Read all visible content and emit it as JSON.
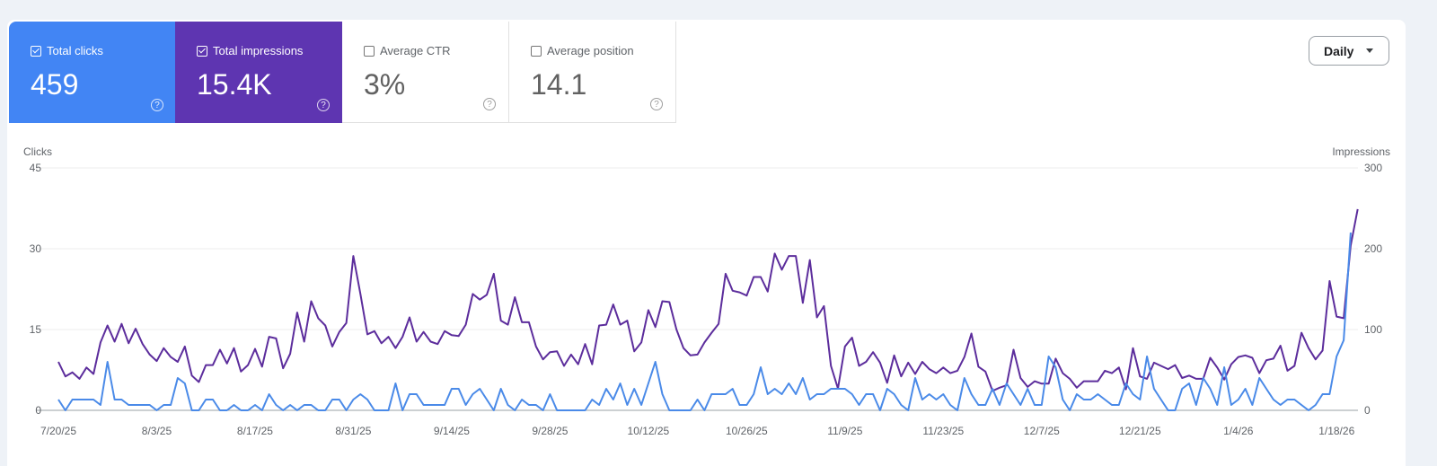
{
  "metrics": [
    {
      "label": "Total clicks",
      "value": "459",
      "checked": true
    },
    {
      "label": "Total impressions",
      "value": "15.4K",
      "checked": true
    },
    {
      "label": "Average CTR",
      "value": "3%",
      "checked": false
    },
    {
      "label": "Average position",
      "value": "14.1",
      "checked": false
    }
  ],
  "help_glyph": "?",
  "granularity": {
    "selected": "Daily"
  },
  "colors": {
    "clicks": "#4a8ae8",
    "impressions": "#5c2d9c",
    "clicks_card": "#4285f4",
    "impressions_card": "#5e35b1"
  },
  "chart_data": {
    "type": "line",
    "left_axis": {
      "label": "Clicks",
      "ticks": [
        "0",
        "15",
        "30",
        "45"
      ],
      "range": [
        0,
        45
      ]
    },
    "right_axis": {
      "label": "Impressions",
      "ticks": [
        "0",
        "100",
        "200",
        "300"
      ],
      "range": [
        0,
        300
      ]
    },
    "x_ticks": [
      "7/20/25",
      "8/3/25",
      "8/17/25",
      "8/31/25",
      "9/14/25",
      "9/28/25",
      "10/12/25",
      "10/26/25",
      "11/9/25",
      "11/23/25",
      "12/7/25",
      "12/21/25",
      "1/4/26",
      "1/18/26"
    ],
    "x_start": "7/20/25",
    "grid": true,
    "series": [
      {
        "name": "Impressions",
        "axis": "right",
        "values": [
          60,
          42,
          47,
          39,
          53,
          45,
          84,
          105,
          85,
          107,
          83,
          101,
          82,
          69,
          61,
          77,
          66,
          60,
          79,
          43,
          35,
          56,
          56,
          75,
          58,
          77,
          48,
          56,
          76,
          54,
          91,
          89,
          52,
          70,
          121,
          85,
          135,
          114,
          105,
          79,
          97,
          108,
          191,
          144,
          94,
          98,
          83,
          91,
          77,
          91,
          115,
          85,
          97,
          85,
          82,
          98,
          93,
          92,
          106,
          144,
          137,
          143,
          169,
          111,
          106,
          140,
          109,
          109,
          79,
          63,
          72,
          73,
          55,
          69,
          57,
          82,
          57,
          105,
          106,
          131,
          106,
          111,
          73,
          84,
          124,
          103,
          135,
          134,
          100,
          77,
          68,
          69,
          84,
          96,
          107,
          169,
          148,
          146,
          142,
          165,
          165,
          147,
          194,
          174,
          191,
          191,
          133,
          186,
          115,
          129,
          55,
          27,
          79,
          90,
          55,
          60,
          72,
          59,
          34,
          68,
          42,
          59,
          45,
          60,
          51,
          46,
          53,
          46,
          49,
          66,
          95,
          54,
          48,
          24,
          28,
          31,
          75,
          40,
          29,
          36,
          33,
          33,
          64,
          46,
          39,
          28,
          36,
          36,
          36,
          49,
          46,
          53,
          26,
          77,
          42,
          39,
          59,
          55,
          51,
          56,
          40,
          43,
          39,
          39,
          65,
          53,
          38,
          57,
          66,
          68,
          65,
          46,
          62,
          64,
          80,
          49,
          55,
          96,
          77,
          63,
          74,
          160,
          116,
          114,
          204,
          249
        ]
      },
      {
        "name": "Clicks",
        "axis": "left",
        "values": [
          2,
          0,
          2,
          2,
          2,
          2,
          1,
          9,
          2,
          2,
          1,
          1,
          1,
          1,
          0,
          1,
          1,
          6,
          5,
          0,
          0,
          2,
          2,
          0,
          0,
          1,
          0,
          0,
          1,
          0,
          3,
          1,
          0,
          1,
          0,
          1,
          1,
          0,
          0,
          2,
          2,
          0,
          2,
          3,
          2,
          0,
          0,
          0,
          5,
          0,
          3,
          3,
          1,
          1,
          1,
          1,
          4,
          4,
          1,
          3,
          4,
          2,
          0,
          4,
          1,
          0,
          2,
          1,
          1,
          0,
          3,
          0,
          0,
          0,
          0,
          0,
          2,
          1,
          4,
          2,
          5,
          1,
          4,
          1,
          5,
          9,
          3,
          0,
          0,
          0,
          0,
          2,
          0,
          3,
          3,
          3,
          4,
          1,
          1,
          3,
          8,
          3,
          4,
          3,
          5,
          3,
          6,
          2,
          3,
          3,
          4,
          4,
          4,
          3,
          1,
          3,
          3,
          0,
          4,
          3,
          1,
          0,
          6,
          2,
          3,
          2,
          3,
          1,
          0,
          6,
          3,
          1,
          1,
          4,
          1,
          5,
          3,
          1,
          4,
          1,
          1,
          10,
          8,
          2,
          0,
          3,
          2,
          2,
          3,
          2,
          1,
          1,
          5,
          3,
          2,
          10,
          4,
          2,
          0,
          0,
          4,
          5,
          1,
          6,
          4,
          1,
          8,
          1,
          2,
          4,
          1,
          6,
          4,
          2,
          1,
          2,
          2,
          1,
          0,
          1,
          3,
          3,
          10,
          13,
          33
        ]
      }
    ]
  }
}
